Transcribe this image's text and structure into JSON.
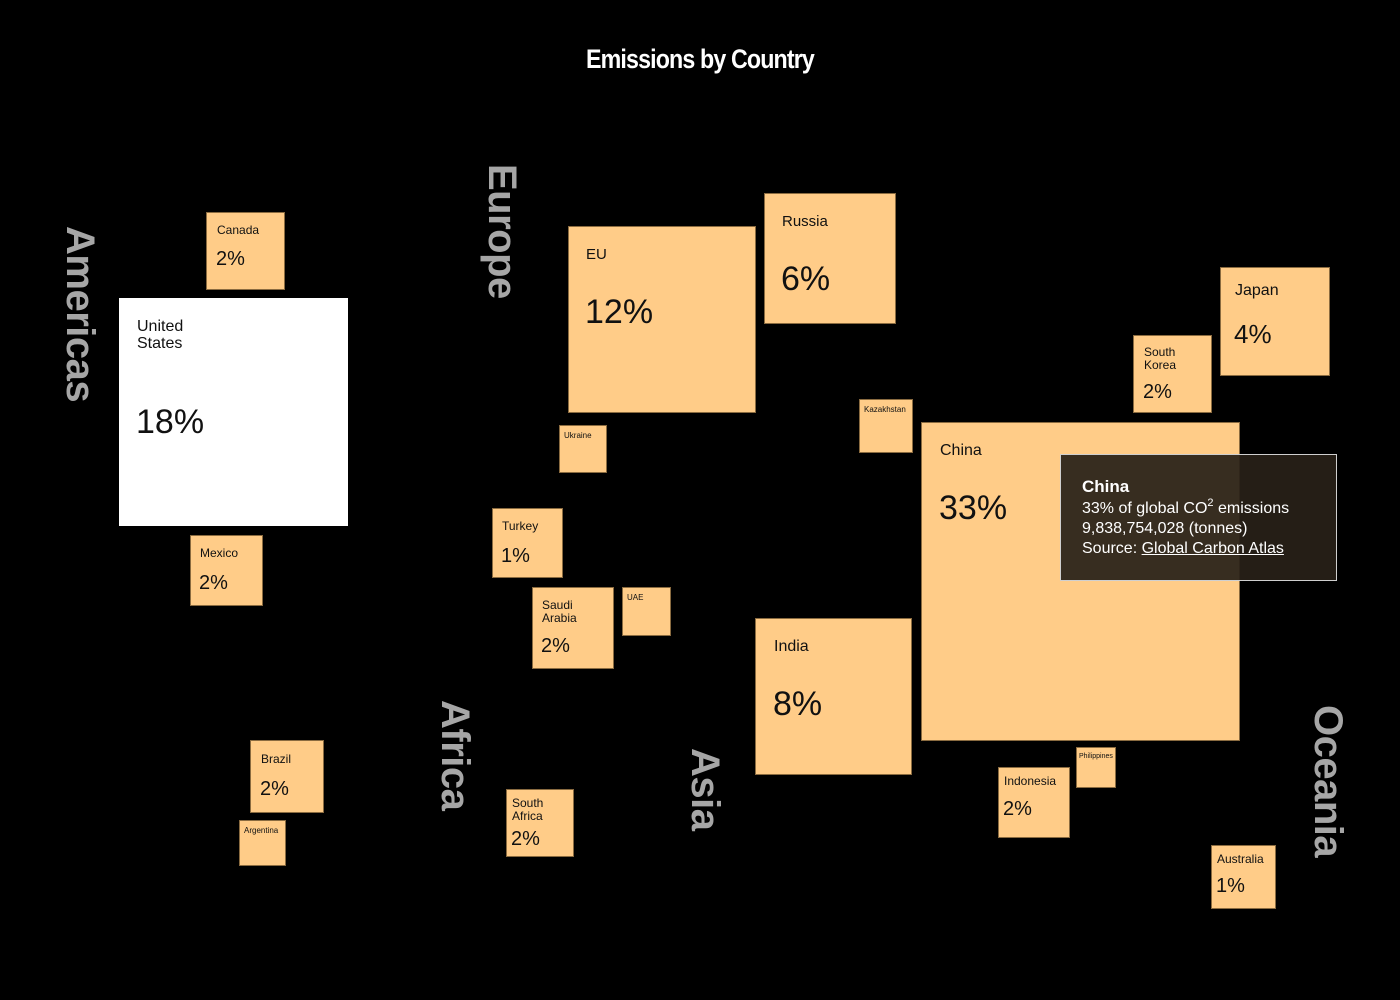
{
  "chart_data": {
    "type": "treemap-cartogram",
    "title": "Emissions by Country",
    "unit": "% of global CO2 emissions",
    "regions": [
      "Americas",
      "Europe",
      "Africa",
      "Asia",
      "Oceania"
    ],
    "countries": [
      {
        "id": "canada",
        "name": "Canada",
        "region": "Americas",
        "value": 2,
        "label": "2%"
      },
      {
        "id": "united-states",
        "name": "United\nStates",
        "region": "Americas",
        "value": 18,
        "label": "18%",
        "selected": true
      },
      {
        "id": "mexico",
        "name": "Mexico",
        "region": "Americas",
        "value": 2,
        "label": "2%"
      },
      {
        "id": "brazil",
        "name": "Brazil",
        "region": "Americas",
        "value": 2,
        "label": "2%"
      },
      {
        "id": "argentina",
        "name": "Argentina",
        "region": "Americas",
        "value": null,
        "label": ""
      },
      {
        "id": "eu",
        "name": "EU",
        "region": "Europe",
        "value": 12,
        "label": "12%"
      },
      {
        "id": "russia",
        "name": "Russia",
        "region": "Europe",
        "value": 6,
        "label": "6%"
      },
      {
        "id": "ukraine",
        "name": "Ukraine",
        "region": "Europe",
        "value": null,
        "label": ""
      },
      {
        "id": "turkey",
        "name": "Turkey",
        "region": "Europe",
        "value": 1,
        "label": "1%"
      },
      {
        "id": "saudi-arabia",
        "name": "Saudi\nArabia",
        "region": "Asia",
        "value": 2,
        "label": "2%"
      },
      {
        "id": "uae",
        "name": "UAE",
        "region": "Asia",
        "value": null,
        "label": ""
      },
      {
        "id": "south-africa",
        "name": "South\nAfrica",
        "region": "Africa",
        "value": 2,
        "label": "2%"
      },
      {
        "id": "kazakhstan",
        "name": "Kazakhstan",
        "region": "Asia",
        "value": null,
        "label": ""
      },
      {
        "id": "china",
        "name": "China",
        "region": "Asia",
        "value": 33,
        "label": "33%"
      },
      {
        "id": "india",
        "name": "India",
        "region": "Asia",
        "value": 8,
        "label": "8%"
      },
      {
        "id": "japan",
        "name": "Japan",
        "region": "Asia",
        "value": 4,
        "label": "4%"
      },
      {
        "id": "south-korea",
        "name": "South\nKorea",
        "region": "Asia",
        "value": 2,
        "label": "2%"
      },
      {
        "id": "indonesia",
        "name": "Indonesia",
        "region": "Asia",
        "value": 2,
        "label": "2%"
      },
      {
        "id": "philippines",
        "name": "Philippines",
        "region": "Asia",
        "value": null,
        "label": ""
      },
      {
        "id": "australia",
        "name": "Australia",
        "region": "Oceania",
        "value": 1,
        "label": "1%"
      }
    ]
  },
  "tooltip": {
    "title": "China",
    "line1_prefix": "33% of global CO",
    "line1_sup": "2",
    "line1_suffix": " emissions",
    "line2": "9,838,754,028 (tonnes)",
    "source_label": "Source: ",
    "source_link": "Global Carbon Atlas"
  },
  "colors": {
    "background": "#000000",
    "box_fill": "#ffcc88",
    "selected_fill": "#ffffff",
    "region_label": "#a6a6a6"
  }
}
